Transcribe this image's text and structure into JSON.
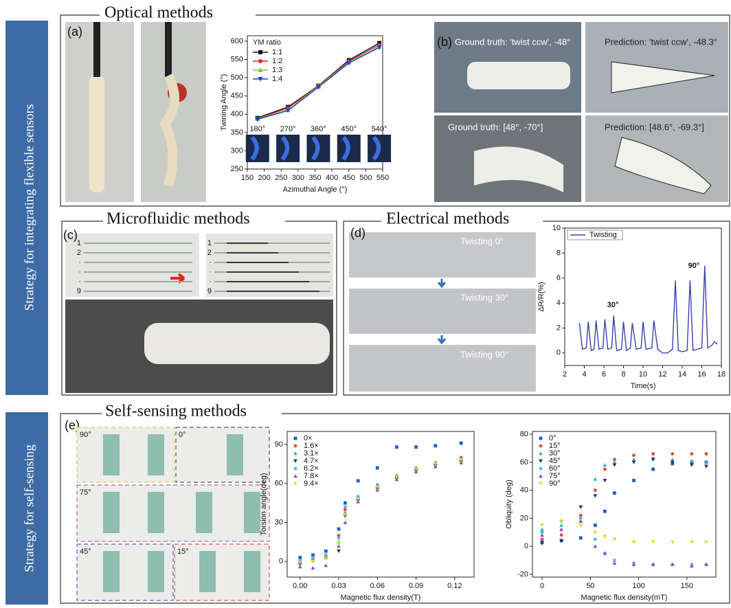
{
  "side_labels": [
    "Strategy for integrating  flexible sensors",
    "Strategy for self-sensing"
  ],
  "sections": [
    "Optical methods",
    "Microfluidic methods",
    "Electrical methods",
    "Self-sensing methods"
  ],
  "panel_labels": [
    "(a)",
    "(b)",
    "(c)",
    "(d)",
    "(e)"
  ],
  "optical_photos": {
    "ground_truth_1": "Ground truth: 'twist ccw', -48°",
    "prediction_1": "Prediction: 'twist ccw', -48.3°",
    "ground_truth_2": "Ground truth: [48°, -70°]",
    "prediction_2": "Prediction: [48.6°, -69.3°]"
  },
  "inset_labels": [
    "180°",
    "270°",
    "360°",
    "450°",
    "540°"
  ],
  "microfluidic_rows": [
    "1",
    "2",
    "·",
    "·",
    "·",
    "9"
  ],
  "electrical_photos": [
    "Twisting  0°",
    "Twisting  30°",
    "Twisting  90°"
  ],
  "self_sensing_angles": [
    "90°",
    "0°",
    "75°",
    "45°",
    "15°"
  ],
  "chart_data": [
    {
      "type": "line",
      "xlabel": "Azimuthal Angle (°)",
      "ylabel": "Twining Angle (°)",
      "legend_title": "YM ratio",
      "legend": "upper left",
      "x": [
        180,
        270,
        360,
        450,
        540
      ],
      "series": [
        {
          "name": "1:1",
          "color": "#111111",
          "marker": "square",
          "values": [
            390,
            420,
            478,
            548,
            595
          ]
        },
        {
          "name": "1:2",
          "color": "#d62728",
          "marker": "circle",
          "values": [
            388,
            417,
            477,
            545,
            590
          ]
        },
        {
          "name": "1:3",
          "color": "#6ccf3a",
          "marker": "triangle",
          "values": [
            387,
            412,
            476,
            542,
            585
          ]
        },
        {
          "name": "1:4",
          "color": "#1f3fd6",
          "marker": "down",
          "values": [
            386,
            410,
            474,
            540,
            583
          ]
        }
      ],
      "xlim": [
        150,
        550
      ],
      "xticks": [
        150,
        200,
        250,
        300,
        350,
        400,
        450,
        500,
        550
      ],
      "ylim": [
        250,
        615
      ],
      "yticks": [
        250,
        300,
        350,
        400,
        450,
        500,
        550,
        600
      ]
    },
    {
      "type": "line",
      "xlabel": "Time(s)",
      "ylabel": "ΔR/R(%)",
      "legend": "upper left",
      "annotations": [
        "30°",
        "90°"
      ],
      "x": [
        3.5,
        3.8,
        4.2,
        4.4,
        4.7,
        5.0,
        5.2,
        5.5,
        5.9,
        6.1,
        6.4,
        6.8,
        7.0,
        7.3,
        7.8,
        8.0,
        8.3,
        8.7,
        8.9,
        9.3,
        9.8,
        10.0,
        10.3,
        10.9,
        11.1,
        11.5,
        12.0,
        12.5,
        13.0,
        13.3,
        13.6,
        14.0,
        14.5,
        14.8,
        15.1,
        15.5,
        16.0,
        16.3,
        16.6,
        17.0,
        17.3,
        17.6
      ],
      "series": [
        {
          "name": "Twisting",
          "color": "#3a3fb0",
          "values": [
            2.4,
            0.3,
            0.4,
            2.5,
            0.2,
            0.3,
            2.6,
            0.3,
            0.4,
            2.7,
            0.3,
            0.4,
            3.0,
            0.2,
            0.3,
            2.5,
            0.2,
            0.4,
            2.4,
            0.3,
            0.4,
            2.5,
            0.3,
            0.4,
            2.6,
            0.3,
            0.0,
            0.0,
            0.3,
            5.8,
            0.2,
            0.1,
            0.2,
            5.8,
            0.2,
            0.3,
            0.4,
            7.0,
            0.4,
            0.6,
            0.9,
            0.7
          ]
        }
      ],
      "xlim": [
        2,
        18
      ],
      "xticks": [
        2,
        4,
        6,
        8,
        10,
        12,
        14,
        16,
        18
      ],
      "ylim": [
        -1,
        10
      ],
      "yticks": [
        0,
        2,
        4,
        6,
        8,
        10
      ]
    },
    {
      "type": "scatter",
      "xlabel": "Magnetic flux density(T)",
      "ylabel": "Torsion angle(deg)",
      "legend": "upper left",
      "x": [
        0,
        0.01,
        0.02,
        0.03,
        0.035,
        0.045,
        0.06,
        0.075,
        0.09,
        0.105,
        0.125
      ],
      "series": [
        {
          "name": "0×",
          "color": "#1f5fbf",
          "marker": "square",
          "values": [
            3,
            5,
            8,
            25,
            45,
            62,
            72,
            88,
            88,
            89,
            91
          ]
        },
        {
          "name": "1.6×",
          "color": "#e8453c",
          "marker": "circle",
          "values": [
            0,
            2,
            4,
            20,
            40,
            50,
            58,
            66,
            72,
            76,
            80
          ]
        },
        {
          "name": "3.1×",
          "color": "#3cb5b0",
          "marker": "triangle",
          "values": [
            -1,
            1,
            3,
            15,
            38,
            48,
            57,
            65,
            71,
            75,
            78
          ]
        },
        {
          "name": "4.7×",
          "color": "#22306e",
          "marker": "down",
          "values": [
            -2,
            0,
            2,
            8,
            35,
            47,
            56,
            64,
            70,
            74,
            77
          ]
        },
        {
          "name": "6.2×",
          "color": "#4fb8e8",
          "marker": "circle",
          "values": [
            1,
            3,
            5,
            18,
            42,
            50,
            59,
            66,
            72,
            76,
            79
          ]
        },
        {
          "name": "7.8×",
          "color": "#9050c0",
          "marker": "triangle",
          "values": [
            -4,
            -5,
            -3,
            12,
            30,
            46,
            55,
            63,
            69,
            73,
            76
          ]
        },
        {
          "name": "9.4×",
          "color": "#e8d820",
          "marker": "down",
          "values": [
            -1,
            0,
            2,
            14,
            36,
            48,
            57,
            65,
            71,
            75,
            78
          ]
        }
      ],
      "xlim": [
        -0.01,
        0.135
      ],
      "xticks": [
        {
          "value": 0,
          "label": "0.00"
        },
        {
          "value": 0.03,
          "label": "0.03"
        },
        {
          "value": 0.06,
          "label": "0.06"
        },
        {
          "value": 0.09,
          "label": "0.09"
        },
        {
          "value": 0.12,
          "label": "0.12"
        }
      ],
      "ylim": [
        -12,
        100
      ],
      "yticks": [
        0,
        30,
        60,
        90
      ]
    },
    {
      "type": "scatter",
      "xlabel": "Magnetic flux density(mT)",
      "ylabel": "Obliquity (deg)",
      "legend": "upper left",
      "x": [
        0,
        20,
        40,
        55,
        65,
        75,
        95,
        115,
        135,
        155,
        170
      ],
      "series": [
        {
          "name": "0°",
          "color": "#1f5fbf",
          "marker": "square",
          "values": [
            3,
            4,
            6,
            15,
            25,
            38,
            47,
            55,
            59,
            60,
            60
          ]
        },
        {
          "name": "15°",
          "color": "#e8453c",
          "marker": "circle",
          "values": [
            5,
            8,
            22,
            40,
            55,
            62,
            65,
            66,
            66,
            66,
            66
          ]
        },
        {
          "name": "30°",
          "color": "#3cb5b0",
          "marker": "triangle",
          "values": [
            12,
            15,
            18,
            48,
            58,
            60,
            62,
            63,
            62,
            61,
            60
          ]
        },
        {
          "name": "45°",
          "color": "#22306e",
          "marker": "down",
          "values": [
            2,
            4,
            28,
            36,
            47,
            58,
            60,
            62,
            60,
            58,
            57
          ]
        },
        {
          "name": "60°",
          "color": "#4fb8e8",
          "marker": "circle",
          "values": [
            10,
            18,
            20,
            5,
            -5,
            -10,
            -12,
            -13,
            -13,
            -13,
            -13
          ]
        },
        {
          "name": "75°",
          "color": "#9050c0",
          "marker": "triangle",
          "values": [
            8,
            12,
            18,
            0,
            -5,
            -12,
            -13,
            -13,
            -13,
            -14,
            -13
          ]
        },
        {
          "name": "90°",
          "color": "#e8d820",
          "marker": "down",
          "values": [
            15,
            18,
            15,
            10,
            7,
            5,
            3,
            3,
            3,
            3,
            3
          ]
        }
      ],
      "xlim": [
        -10,
        180
      ],
      "xticks": [
        0,
        50,
        100,
        150
      ],
      "ylim": [
        -22,
        82
      ],
      "yticks": [
        -20,
        0,
        20,
        40,
        60,
        80
      ]
    }
  ]
}
